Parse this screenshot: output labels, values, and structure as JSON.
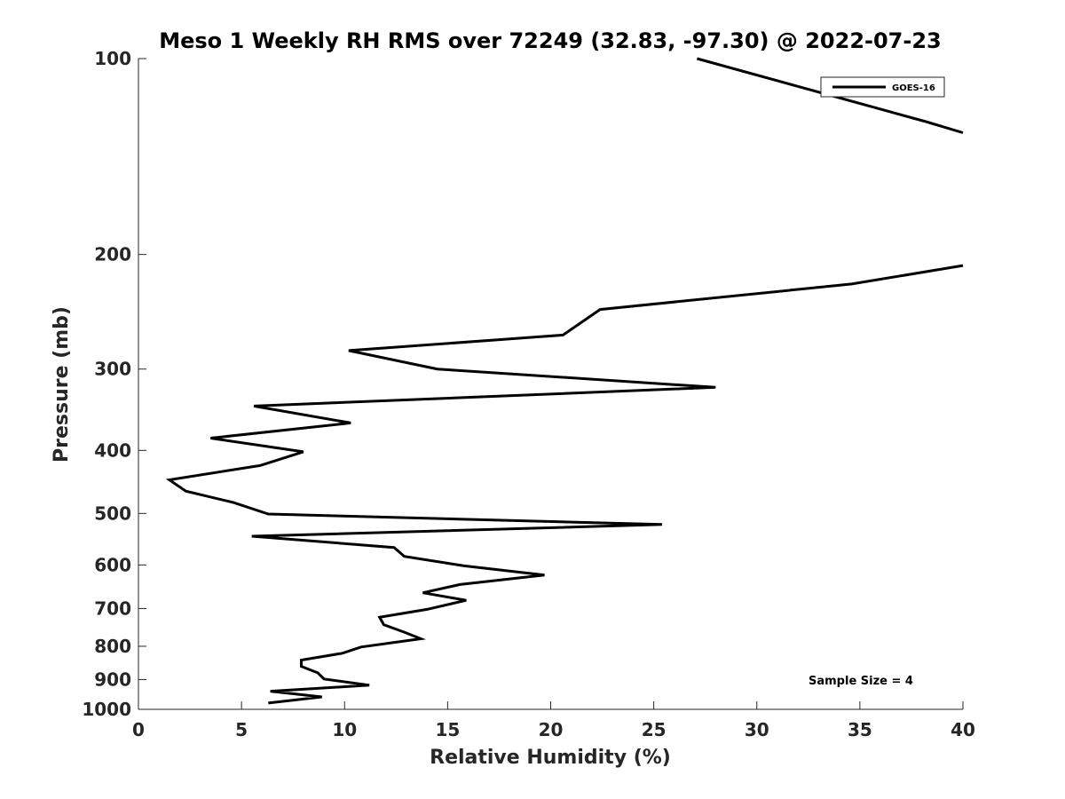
{
  "chart_data": {
    "type": "line",
    "title": "Meso 1 Weekly RH RMS over 72249 (32.83, -97.30) @ 2022-07-23",
    "xlabel": "Relative Humidity (%)",
    "ylabel": "Pressure (mb)",
    "xlim": [
      0,
      40
    ],
    "ylim": [
      100,
      1000
    ],
    "y_scale": "log",
    "y_reversed": true,
    "x_ticks": [
      0,
      5,
      10,
      15,
      20,
      25,
      30,
      35,
      40
    ],
    "y_ticks": [
      100,
      200,
      300,
      400,
      500,
      600,
      700,
      800,
      900,
      1000
    ],
    "grid": false,
    "legend_position": "top-right",
    "annotation": "Sample Size = 4",
    "series": [
      {
        "name": "GOES-16",
        "color": "#000000",
        "segments": [
          [
            {
              "x": 27.1,
              "y": 100
            },
            {
              "x": 38.2,
              "y": 125
            },
            {
              "x": 40.0,
              "y": 130
            }
          ],
          [
            {
              "x": 40.0,
              "y": 208
            },
            {
              "x": 34.6,
              "y": 222
            },
            {
              "x": 22.4,
              "y": 243
            },
            {
              "x": 20.6,
              "y": 266
            },
            {
              "x": 10.2,
              "y": 281
            },
            {
              "x": 14.5,
              "y": 300
            },
            {
              "x": 28.0,
              "y": 320
            },
            {
              "x": 5.6,
              "y": 342
            },
            {
              "x": 10.3,
              "y": 363
            },
            {
              "x": 3.5,
              "y": 383
            },
            {
              "x": 8.0,
              "y": 402
            },
            {
              "x": 5.9,
              "y": 422
            },
            {
              "x": 1.5,
              "y": 444
            },
            {
              "x": 2.3,
              "y": 462
            },
            {
              "x": 4.6,
              "y": 481
            },
            {
              "x": 6.3,
              "y": 501
            },
            {
              "x": 25.4,
              "y": 520
            },
            {
              "x": 5.5,
              "y": 542
            },
            {
              "x": 12.4,
              "y": 564
            },
            {
              "x": 12.9,
              "y": 582
            },
            {
              "x": 15.8,
              "y": 602
            },
            {
              "x": 19.7,
              "y": 622
            },
            {
              "x": 15.6,
              "y": 643
            },
            {
              "x": 13.8,
              "y": 662
            },
            {
              "x": 15.9,
              "y": 680
            },
            {
              "x": 14.0,
              "y": 702
            },
            {
              "x": 11.7,
              "y": 722
            },
            {
              "x": 11.9,
              "y": 741
            },
            {
              "x": 12.9,
              "y": 761
            },
            {
              "x": 13.7,
              "y": 779
            },
            {
              "x": 10.8,
              "y": 802
            },
            {
              "x": 9.9,
              "y": 820
            },
            {
              "x": 7.9,
              "y": 840
            },
            {
              "x": 7.9,
              "y": 859
            },
            {
              "x": 8.7,
              "y": 879
            },
            {
              "x": 9.0,
              "y": 898
            },
            {
              "x": 11.2,
              "y": 918
            },
            {
              "x": 6.4,
              "y": 938
            },
            {
              "x": 8.9,
              "y": 957
            },
            {
              "x": 6.3,
              "y": 978
            }
          ]
        ]
      }
    ]
  }
}
